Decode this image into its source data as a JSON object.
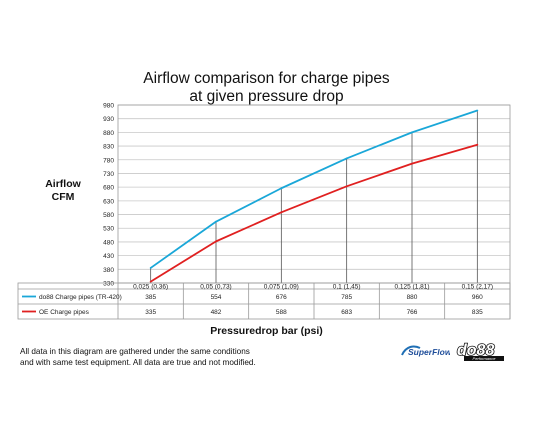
{
  "chart_data": {
    "type": "line",
    "title_line1": "Airflow comparison for charge pipes",
    "title_line2": "at given pressure drop",
    "ylabel_line1": "Airflow",
    "ylabel_line2": "CFM",
    "xlabel": "Pressuredrop bar (psi)",
    "categories": [
      "0,025 (0,36)",
      "0,05 (0,73)",
      "0,075 (1,09)",
      "0,1 (1,45)",
      "0,125 (1,81)",
      "0,15 (2,17)"
    ],
    "yticks": [
      330,
      380,
      430,
      480,
      530,
      580,
      630,
      680,
      730,
      780,
      830,
      880,
      930,
      980
    ],
    "ylim": [
      330,
      980
    ],
    "grid": true,
    "series": [
      {
        "name": "do88 Charge pipes (TR-420)",
        "color": "#1aa7d8",
        "values": [
          385,
          554,
          676,
          785,
          880,
          960
        ]
      },
      {
        "name": "OE Charge pipes",
        "color": "#e02020",
        "values": [
          335,
          482,
          588,
          683,
          766,
          835
        ]
      }
    ]
  },
  "footnote": {
    "line1": "All data in this diagram are gathered under the same conditions",
    "line2": "and with same test equipment. All data are true and not modified."
  },
  "logos": {
    "superflow": "SuperFlow",
    "do88": "do88",
    "do88_sub": "Performance"
  }
}
